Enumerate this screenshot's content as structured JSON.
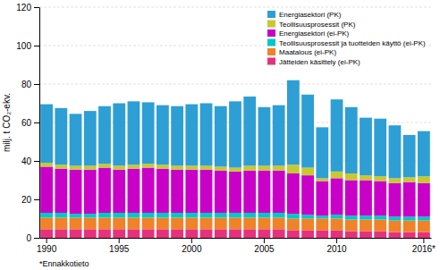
{
  "chart_data": {
    "type": "bar",
    "stacked": true,
    "categories": [
      "1990",
      null,
      null,
      null,
      null,
      "1995",
      null,
      null,
      null,
      null,
      "2000",
      null,
      null,
      null,
      null,
      "2005",
      null,
      null,
      null,
      null,
      "2010",
      null,
      null,
      null,
      null,
      null,
      "2016*"
    ],
    "series": [
      {
        "name": "Jätteiden käsittely  (ei-PK)",
        "color": "#e6327d",
        "values": [
          4.5,
          4.5,
          4.5,
          4.5,
          4.5,
          4.5,
          4.5,
          4.5,
          4.5,
          4.5,
          4.5,
          4.5,
          4.5,
          4.5,
          4.5,
          4.5,
          4.5,
          4.0,
          4.0,
          4.0,
          4.0,
          3.5,
          3.5,
          3.5,
          3.0,
          3.0,
          3.0
        ]
      },
      {
        "name": "Maatalous (ei-PK)",
        "color": "#f08228",
        "values": [
          6.0,
          6.0,
          6.0,
          6.0,
          6.0,
          6.0,
          6.0,
          6.0,
          6.0,
          6.0,
          6.0,
          6.0,
          6.0,
          6.0,
          6.0,
          6.0,
          6.0,
          6.0,
          6.0,
          6.0,
          6.0,
          6.0,
          6.0,
          6.0,
          6.0,
          6.0,
          6.0
        ]
      },
      {
        "name": "Teollisuusprosessit ja tuotteiden käyttö (ei-PK)",
        "color": "#00c8c8",
        "values": [
          2.5,
          2.5,
          2.0,
          2.0,
          2.5,
          2.5,
          2.5,
          2.5,
          2.5,
          2.5,
          2.5,
          2.5,
          2.5,
          2.5,
          2.5,
          2.5,
          2.5,
          2.5,
          2.0,
          1.5,
          2.0,
          2.0,
          2.0,
          2.0,
          2.0,
          2.0,
          2.0
        ]
      },
      {
        "name": "Energiasektori (ei-PK)",
        "color": "#c800c8",
        "values": [
          24.0,
          23.0,
          23.0,
          23.0,
          23.5,
          22.5,
          23.0,
          23.5,
          23.0,
          22.5,
          22.5,
          22.5,
          22.0,
          21.5,
          22.0,
          22.0,
          22.0,
          21.0,
          20.5,
          18.0,
          19.0,
          18.5,
          18.5,
          18.0,
          17.5,
          18.0,
          17.5
        ]
      },
      {
        "name": "Teollisuusprosessit (PK)",
        "color": "#c8c832",
        "values": [
          2.0,
          2.0,
          2.0,
          2.0,
          2.0,
          2.0,
          2.0,
          2.0,
          2.0,
          2.0,
          2.0,
          2.0,
          2.0,
          2.0,
          2.5,
          2.5,
          2.5,
          4.5,
          4.0,
          1.5,
          3.5,
          3.5,
          2.5,
          2.5,
          2.5,
          2.5,
          3.5
        ]
      },
      {
        "name": "Energiasektori (PK)",
        "color": "#2e9fd4",
        "values": [
          30.5,
          29.5,
          27.0,
          28.5,
          30.0,
          32.5,
          33.0,
          32.0,
          31.0,
          31.0,
          32.0,
          32.5,
          31.5,
          34.5,
          36.0,
          30.5,
          31.5,
          44.0,
          38.0,
          26.5,
          37.5,
          34.5,
          30.0,
          30.0,
          27.5,
          22.0,
          23.5
        ]
      }
    ],
    "ylabel": "milj. t CO₂-ekv.",
    "ylim": [
      0,
      120
    ],
    "yticks": [
      0,
      20,
      40,
      60,
      80,
      100,
      120
    ],
    "grid": true,
    "legend": "top",
    "annotations": [
      "*Ennakkotieto"
    ]
  }
}
